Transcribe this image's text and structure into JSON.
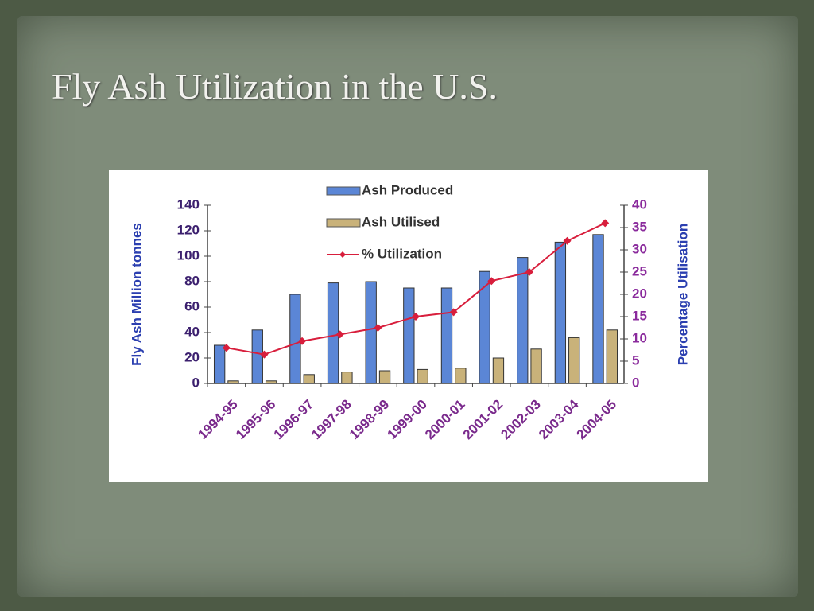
{
  "title": "Fly Ash Utilization in the U.S.",
  "chart_data": {
    "type": "bar",
    "categories": [
      "1994-95",
      "1995-96",
      "1996-97",
      "1997-98",
      "1998-99",
      "1999-00",
      "2000-01",
      "2001-02",
      "2002-03",
      "2003-04",
      "2004-05"
    ],
    "y_label": "Fly Ash Million tonnes",
    "y2_label": "Percentage Utilisation",
    "ylim": [
      0,
      140
    ],
    "yticks": [
      0,
      20,
      40,
      60,
      80,
      100,
      120,
      140
    ],
    "y2lim": [
      0,
      40
    ],
    "y2ticks": [
      0,
      5,
      10,
      15,
      20,
      25,
      30,
      35,
      40
    ],
    "series": [
      {
        "name": "Ash Produced",
        "type": "bar",
        "color": "#5b86d6",
        "values": [
          30,
          42,
          70,
          79,
          80,
          75,
          75,
          88,
          99,
          111,
          117
        ]
      },
      {
        "name": "Ash Utilised",
        "type": "bar",
        "color": "#c9b27a",
        "values": [
          2,
          2,
          7,
          9,
          10,
          11,
          12,
          20,
          27,
          36,
          42
        ]
      },
      {
        "name": "% Utilization",
        "type": "line",
        "axis": "y2",
        "color": "#d81e3c",
        "values": [
          8,
          6.5,
          9.5,
          11,
          12.5,
          15,
          16,
          23,
          25,
          32,
          36
        ]
      }
    ]
  }
}
